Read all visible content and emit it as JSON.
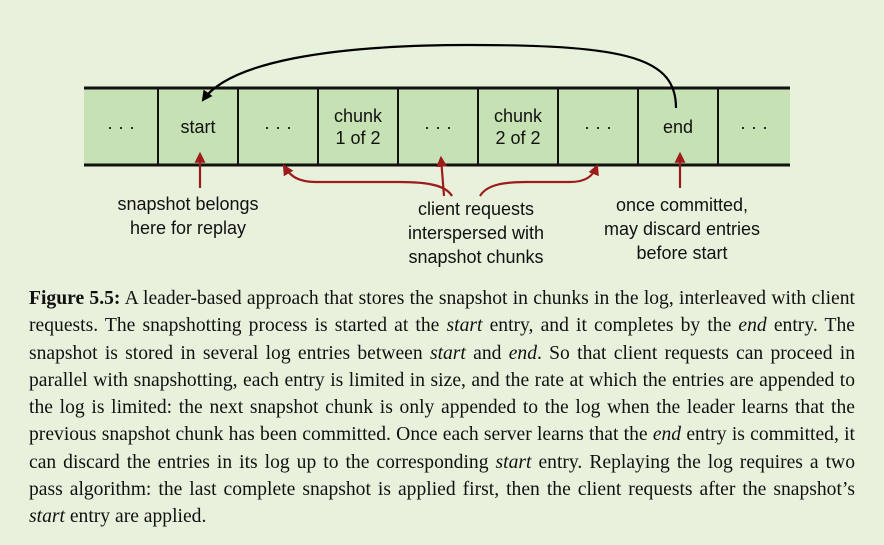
{
  "log_cells": [
    {
      "text": "· · ·"
    },
    {
      "text": "start"
    },
    {
      "text": "· · ·"
    },
    {
      "text": "chunk\n1 of 2"
    },
    {
      "text": "· · ·"
    },
    {
      "text": "chunk\n2 of 2"
    },
    {
      "text": "· · ·"
    },
    {
      "text": "end"
    },
    {
      "text": "· · ·"
    }
  ],
  "annotations": {
    "snapshot_belongs": "snapshot belongs\nhere for replay",
    "client_requests": "client requests\ninterspersed with\nsnapshot chunks",
    "once_committed": "once committed,\nmay discard entries\nbefore start"
  },
  "caption": {
    "label": "Figure 5.5:",
    "segments": [
      {
        "t": " A leader-based approach that stores the snapshot in chunks in the log, interleaved with client requests. The snapshotting process is started at the "
      },
      {
        "t": "start",
        "i": true
      },
      {
        "t": " entry, and it completes by the "
      },
      {
        "t": "end",
        "i": true
      },
      {
        "t": " entry. The snapshot is stored in several log entries between "
      },
      {
        "t": "start",
        "i": true
      },
      {
        "t": " and "
      },
      {
        "t": "end",
        "i": true
      },
      {
        "t": ". So that client requests can proceed in parallel with snapshotting, each entry is limited in size, and the rate at which the entries are appended to the log is limited: the next snapshot chunk is only appended to the log when the leader learns that the previous snapshot chunk has been committed. Once each server learns that the "
      },
      {
        "t": "end",
        "i": true
      },
      {
        "t": " entry is committed, it can discard the entries in its log up to the corresponding "
      },
      {
        "t": "start",
        "i": true
      },
      {
        "t": " entry. Replaying the log requires a two pass algorithm: the last complete snapshot is applied first, then the client requests after the snapshot’s "
      },
      {
        "t": "start",
        "i": true
      },
      {
        "t": " entry are applied."
      }
    ]
  },
  "colors": {
    "cell_fill": "#c6e1b4",
    "cell_stroke": "#111111",
    "red_arrow": "#9e1b1b",
    "black_arrow": "#000000"
  }
}
